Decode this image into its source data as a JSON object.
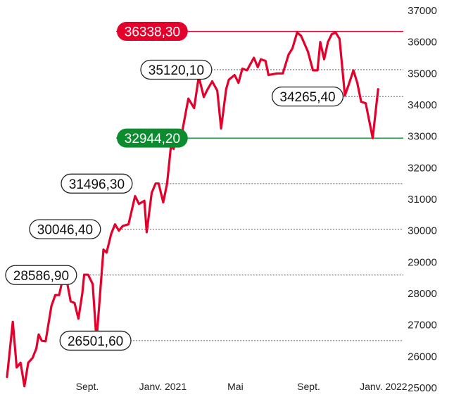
{
  "chart_data": {
    "type": "line",
    "title": "",
    "xlabel": "",
    "ylabel": "",
    "ylim": [
      25000,
      37000
    ],
    "yticks": [
      "37000",
      "36000",
      "35000",
      "34000",
      "33000",
      "32000",
      "31000",
      "30000",
      "29000",
      "28000",
      "27000",
      "26000",
      "25000"
    ],
    "ytick_values": [
      37000,
      36000,
      35000,
      34000,
      33000,
      32000,
      31000,
      30000,
      29000,
      28000,
      27000,
      26000,
      25000
    ],
    "xticks": [
      {
        "label": "Sept.",
        "t": 0.208
      },
      {
        "label": "Janv. 2021",
        "t": 0.404
      },
      {
        "label": "Mai",
        "t": 0.592
      },
      {
        "label": "Sept.",
        "t": 0.782
      },
      {
        "label": "Janv. 2022",
        "t": 0.976
      }
    ],
    "grid": false,
    "line_color": "#e4002b",
    "series": [
      {
        "values": [
          {
            "t": 0.0,
            "y": 25350
          },
          {
            "t": 0.015,
            "y": 27100
          },
          {
            "t": 0.025,
            "y": 25650
          },
          {
            "t": 0.035,
            "y": 25800
          },
          {
            "t": 0.045,
            "y": 25050
          },
          {
            "t": 0.055,
            "y": 25800
          },
          {
            "t": 0.066,
            "y": 25950
          },
          {
            "t": 0.076,
            "y": 26250
          },
          {
            "t": 0.082,
            "y": 26700
          },
          {
            "t": 0.09,
            "y": 26500
          },
          {
            "t": 0.1,
            "y": 26480
          },
          {
            "t": 0.115,
            "y": 27600
          },
          {
            "t": 0.125,
            "y": 27950
          },
          {
            "t": 0.135,
            "y": 27950
          },
          {
            "t": 0.145,
            "y": 28500
          },
          {
            "t": 0.155,
            "y": 28400
          },
          {
            "t": 0.165,
            "y": 27750
          },
          {
            "t": 0.175,
            "y": 27700
          },
          {
            "t": 0.185,
            "y": 27200
          },
          {
            "t": 0.195,
            "y": 28000
          },
          {
            "t": 0.2,
            "y": 28600
          },
          {
            "t": 0.21,
            "y": 28600
          },
          {
            "t": 0.222,
            "y": 28300
          },
          {
            "t": 0.232,
            "y": 26502
          },
          {
            "t": 0.25,
            "y": 29400
          },
          {
            "t": 0.258,
            "y": 29300
          },
          {
            "t": 0.27,
            "y": 29900
          },
          {
            "t": 0.28,
            "y": 30200
          },
          {
            "t": 0.29,
            "y": 30000
          },
          {
            "t": 0.3,
            "y": 30150
          },
          {
            "t": 0.315,
            "y": 30200
          },
          {
            "t": 0.332,
            "y": 31100
          },
          {
            "t": 0.342,
            "y": 30850
          },
          {
            "t": 0.356,
            "y": 30950
          },
          {
            "t": 0.362,
            "y": 29950
          },
          {
            "t": 0.375,
            "y": 31200
          },
          {
            "t": 0.385,
            "y": 31500
          },
          {
            "t": 0.393,
            "y": 31500
          },
          {
            "t": 0.405,
            "y": 30900
          },
          {
            "t": 0.415,
            "y": 31500
          },
          {
            "t": 0.425,
            "y": 32700
          },
          {
            "t": 0.432,
            "y": 32600
          },
          {
            "t": 0.44,
            "y": 33100
          },
          {
            "t": 0.455,
            "y": 33200
          },
          {
            "t": 0.47,
            "y": 34200
          },
          {
            "t": 0.485,
            "y": 33900
          },
          {
            "t": 0.497,
            "y": 34900
          },
          {
            "t": 0.51,
            "y": 34250
          },
          {
            "t": 0.52,
            "y": 34500
          },
          {
            "t": 0.532,
            "y": 34750
          },
          {
            "t": 0.545,
            "y": 34450
          },
          {
            "t": 0.555,
            "y": 33250
          },
          {
            "t": 0.568,
            "y": 34500
          },
          {
            "t": 0.575,
            "y": 34800
          },
          {
            "t": 0.59,
            "y": 34950
          },
          {
            "t": 0.6,
            "y": 34700
          },
          {
            "t": 0.61,
            "y": 35150
          },
          {
            "t": 0.622,
            "y": 35100
          },
          {
            "t": 0.64,
            "y": 35500
          },
          {
            "t": 0.65,
            "y": 35200
          },
          {
            "t": 0.658,
            "y": 35450
          },
          {
            "t": 0.67,
            "y": 35400
          },
          {
            "t": 0.678,
            "y": 34950
          },
          {
            "t": 0.7,
            "y": 35000
          },
          {
            "t": 0.715,
            "y": 35000
          },
          {
            "t": 0.73,
            "y": 35600
          },
          {
            "t": 0.74,
            "y": 35800
          },
          {
            "t": 0.752,
            "y": 36300
          },
          {
            "t": 0.762,
            "y": 36200
          },
          {
            "t": 0.78,
            "y": 35700
          },
          {
            "t": 0.793,
            "y": 35100
          },
          {
            "t": 0.805,
            "y": 35100
          },
          {
            "t": 0.812,
            "y": 36000
          },
          {
            "t": 0.822,
            "y": 35450
          },
          {
            "t": 0.832,
            "y": 36000
          },
          {
            "t": 0.842,
            "y": 36250
          },
          {
            "t": 0.852,
            "y": 36300
          },
          {
            "t": 0.862,
            "y": 36100
          },
          {
            "t": 0.876,
            "y": 34300
          },
          {
            "t": 0.886,
            "y": 34650
          },
          {
            "t": 0.898,
            "y": 35100
          },
          {
            "t": 0.908,
            "y": 34700
          },
          {
            "t": 0.918,
            "y": 34100
          },
          {
            "t": 0.93,
            "y": 34050
          },
          {
            "t": 0.948,
            "y": 32944
          },
          {
            "t": 0.962,
            "y": 34500
          }
        ]
      }
    ],
    "reference_lines": [
      {
        "value": 36338.3,
        "label": "36338,30",
        "style": "solid",
        "color": "#e4002b",
        "box_fill": "#e4002b",
        "box_text_color": "#ffffff"
      },
      {
        "value": 32944.2,
        "label": "32944,20",
        "style": "solid",
        "color": "#0b8c2e",
        "box_fill": "#0b8c2e",
        "box_text_color": "#ffffff"
      }
    ],
    "annotations": [
      {
        "label": "35120,10",
        "value": 35120.1,
        "t_line_start": 0.5,
        "anchor": "left"
      },
      {
        "label": "34265,40",
        "value": 34265.4,
        "t_line_start": 0.79,
        "anchor": "mid"
      },
      {
        "label": "31496,30",
        "value": 31496.3,
        "t_line_start": 0.393,
        "anchor": "left"
      },
      {
        "label": "30046,40",
        "value": 30046.4,
        "t_line_start": 0.29,
        "anchor": "left"
      },
      {
        "label": "28586,90",
        "value": 28586.9,
        "t_line_start": 0.2,
        "anchor": "left"
      },
      {
        "label": "26501,60",
        "value": 26501.6,
        "t_line_start": 0.232,
        "anchor": "right"
      }
    ]
  }
}
